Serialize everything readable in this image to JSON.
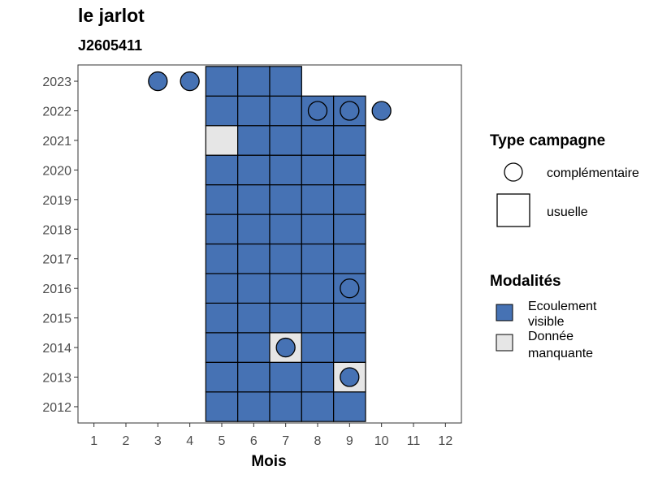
{
  "chart_data": {
    "type": "heatmap",
    "title": "le jarlot",
    "subtitle": "J2605411",
    "xlabel": "Mois",
    "ylabel": "",
    "x_ticks": [
      1,
      2,
      3,
      4,
      5,
      6,
      7,
      8,
      9,
      10,
      11,
      12
    ],
    "y_ticks": [
      2012,
      2013,
      2014,
      2015,
      2016,
      2017,
      2018,
      2019,
      2020,
      2021,
      2022,
      2023
    ],
    "xlim": [
      0.5,
      12.5
    ],
    "ylim": [
      2011.45,
      2023.55
    ],
    "grid": false,
    "colors": {
      "Ecoulement visible": "#4672b4",
      "Donnée manquante": "#e6e6e6"
    },
    "cells": [
      {
        "year": 2012,
        "month": 5,
        "modalite": "Ecoulement visible",
        "campagne": "usuelle"
      },
      {
        "year": 2012,
        "month": 6,
        "modalite": "Ecoulement visible",
        "campagne": "usuelle"
      },
      {
        "year": 2012,
        "month": 7,
        "modalite": "Ecoulement visible",
        "campagne": "usuelle"
      },
      {
        "year": 2012,
        "month": 8,
        "modalite": "Ecoulement visible",
        "campagne": "usuelle"
      },
      {
        "year": 2012,
        "month": 9,
        "modalite": "Ecoulement visible",
        "campagne": "usuelle"
      },
      {
        "year": 2013,
        "month": 5,
        "modalite": "Ecoulement visible",
        "campagne": "usuelle"
      },
      {
        "year": 2013,
        "month": 6,
        "modalite": "Ecoulement visible",
        "campagne": "usuelle"
      },
      {
        "year": 2013,
        "month": 7,
        "modalite": "Ecoulement visible",
        "campagne": "usuelle"
      },
      {
        "year": 2013,
        "month": 8,
        "modalite": "Ecoulement visible",
        "campagne": "usuelle"
      },
      {
        "year": 2013,
        "month": 9,
        "modalite": "Donnée manquante",
        "campagne": "usuelle"
      },
      {
        "year": 2014,
        "month": 5,
        "modalite": "Ecoulement visible",
        "campagne": "usuelle"
      },
      {
        "year": 2014,
        "month": 6,
        "modalite": "Ecoulement visible",
        "campagne": "usuelle"
      },
      {
        "year": 2014,
        "month": 7,
        "modalite": "Donnée manquante",
        "campagne": "usuelle"
      },
      {
        "year": 2014,
        "month": 8,
        "modalite": "Ecoulement visible",
        "campagne": "usuelle"
      },
      {
        "year": 2014,
        "month": 9,
        "modalite": "Ecoulement visible",
        "campagne": "usuelle"
      },
      {
        "year": 2015,
        "month": 5,
        "modalite": "Ecoulement visible",
        "campagne": "usuelle"
      },
      {
        "year": 2015,
        "month": 6,
        "modalite": "Ecoulement visible",
        "campagne": "usuelle"
      },
      {
        "year": 2015,
        "month": 7,
        "modalite": "Ecoulement visible",
        "campagne": "usuelle"
      },
      {
        "year": 2015,
        "month": 8,
        "modalite": "Ecoulement visible",
        "campagne": "usuelle"
      },
      {
        "year": 2015,
        "month": 9,
        "modalite": "Ecoulement visible",
        "campagne": "usuelle"
      },
      {
        "year": 2016,
        "month": 5,
        "modalite": "Ecoulement visible",
        "campagne": "usuelle"
      },
      {
        "year": 2016,
        "month": 6,
        "modalite": "Ecoulement visible",
        "campagne": "usuelle"
      },
      {
        "year": 2016,
        "month": 7,
        "modalite": "Ecoulement visible",
        "campagne": "usuelle"
      },
      {
        "year": 2016,
        "month": 8,
        "modalite": "Ecoulement visible",
        "campagne": "usuelle"
      },
      {
        "year": 2016,
        "month": 9,
        "modalite": "Ecoulement visible",
        "campagne": "usuelle"
      },
      {
        "year": 2017,
        "month": 5,
        "modalite": "Ecoulement visible",
        "campagne": "usuelle"
      },
      {
        "year": 2017,
        "month": 6,
        "modalite": "Ecoulement visible",
        "campagne": "usuelle"
      },
      {
        "year": 2017,
        "month": 7,
        "modalite": "Ecoulement visible",
        "campagne": "usuelle"
      },
      {
        "year": 2017,
        "month": 8,
        "modalite": "Ecoulement visible",
        "campagne": "usuelle"
      },
      {
        "year": 2017,
        "month": 9,
        "modalite": "Ecoulement visible",
        "campagne": "usuelle"
      },
      {
        "year": 2018,
        "month": 5,
        "modalite": "Ecoulement visible",
        "campagne": "usuelle"
      },
      {
        "year": 2018,
        "month": 6,
        "modalite": "Ecoulement visible",
        "campagne": "usuelle"
      },
      {
        "year": 2018,
        "month": 7,
        "modalite": "Ecoulement visible",
        "campagne": "usuelle"
      },
      {
        "year": 2018,
        "month": 8,
        "modalite": "Ecoulement visible",
        "campagne": "usuelle"
      },
      {
        "year": 2018,
        "month": 9,
        "modalite": "Ecoulement visible",
        "campagne": "usuelle"
      },
      {
        "year": 2019,
        "month": 5,
        "modalite": "Ecoulement visible",
        "campagne": "usuelle"
      },
      {
        "year": 2019,
        "month": 6,
        "modalite": "Ecoulement visible",
        "campagne": "usuelle"
      },
      {
        "year": 2019,
        "month": 7,
        "modalite": "Ecoulement visible",
        "campagne": "usuelle"
      },
      {
        "year": 2019,
        "month": 8,
        "modalite": "Ecoulement visible",
        "campagne": "usuelle"
      },
      {
        "year": 2019,
        "month": 9,
        "modalite": "Ecoulement visible",
        "campagne": "usuelle"
      },
      {
        "year": 2020,
        "month": 5,
        "modalite": "Ecoulement visible",
        "campagne": "usuelle"
      },
      {
        "year": 2020,
        "month": 6,
        "modalite": "Ecoulement visible",
        "campagne": "usuelle"
      },
      {
        "year": 2020,
        "month": 7,
        "modalite": "Ecoulement visible",
        "campagne": "usuelle"
      },
      {
        "year": 2020,
        "month": 8,
        "modalite": "Ecoulement visible",
        "campagne": "usuelle"
      },
      {
        "year": 2020,
        "month": 9,
        "modalite": "Ecoulement visible",
        "campagne": "usuelle"
      },
      {
        "year": 2021,
        "month": 5,
        "modalite": "Donnée manquante",
        "campagne": "usuelle"
      },
      {
        "year": 2021,
        "month": 6,
        "modalite": "Ecoulement visible",
        "campagne": "usuelle"
      },
      {
        "year": 2021,
        "month": 7,
        "modalite": "Ecoulement visible",
        "campagne": "usuelle"
      },
      {
        "year": 2021,
        "month": 8,
        "modalite": "Ecoulement visible",
        "campagne": "usuelle"
      },
      {
        "year": 2021,
        "month": 9,
        "modalite": "Ecoulement visible",
        "campagne": "usuelle"
      },
      {
        "year": 2022,
        "month": 5,
        "modalite": "Ecoulement visible",
        "campagne": "usuelle"
      },
      {
        "year": 2022,
        "month": 6,
        "modalite": "Ecoulement visible",
        "campagne": "usuelle"
      },
      {
        "year": 2022,
        "month": 7,
        "modalite": "Ecoulement visible",
        "campagne": "usuelle"
      },
      {
        "year": 2022,
        "month": 8,
        "modalite": "Ecoulement visible",
        "campagne": "usuelle"
      },
      {
        "year": 2022,
        "month": 9,
        "modalite": "Ecoulement visible",
        "campagne": "usuelle"
      },
      {
        "year": 2023,
        "month": 5,
        "modalite": "Ecoulement visible",
        "campagne": "usuelle"
      },
      {
        "year": 2023,
        "month": 6,
        "modalite": "Ecoulement visible",
        "campagne": "usuelle"
      },
      {
        "year": 2023,
        "month": 7,
        "modalite": "Ecoulement visible",
        "campagne": "usuelle"
      }
    ],
    "points": [
      {
        "year": 2013,
        "month": 9,
        "modalite": "Ecoulement visible",
        "campagne": "complémentaire"
      },
      {
        "year": 2014,
        "month": 7,
        "modalite": "Ecoulement visible",
        "campagne": "complémentaire"
      },
      {
        "year": 2016,
        "month": 9,
        "modalite": "Ecoulement visible",
        "campagne": "complémentaire"
      },
      {
        "year": 2022,
        "month": 8,
        "modalite": "Ecoulement visible",
        "campagne": "complémentaire"
      },
      {
        "year": 2022,
        "month": 9,
        "modalite": "Ecoulement visible",
        "campagne": "complémentaire"
      },
      {
        "year": 2022,
        "month": 10,
        "modalite": "Ecoulement visible",
        "campagne": "complémentaire"
      },
      {
        "year": 2023,
        "month": 3,
        "modalite": "Ecoulement visible",
        "campagne": "complémentaire"
      },
      {
        "year": 2023,
        "month": 4,
        "modalite": "Ecoulement visible",
        "campagne": "complémentaire"
      }
    ],
    "legend": {
      "placement": "right",
      "type_campagne": {
        "title": "Type campagne",
        "items": [
          "complémentaire",
          "usuelle"
        ]
      },
      "modalites": {
        "title": "Modalités",
        "items": [
          {
            "label_lines": [
              "Ecoulement",
              "visible"
            ],
            "color": "#4672b4"
          },
          {
            "label_lines": [
              "Donnée",
              "manquante"
            ],
            "color": "#e6e6e6"
          }
        ]
      }
    }
  }
}
